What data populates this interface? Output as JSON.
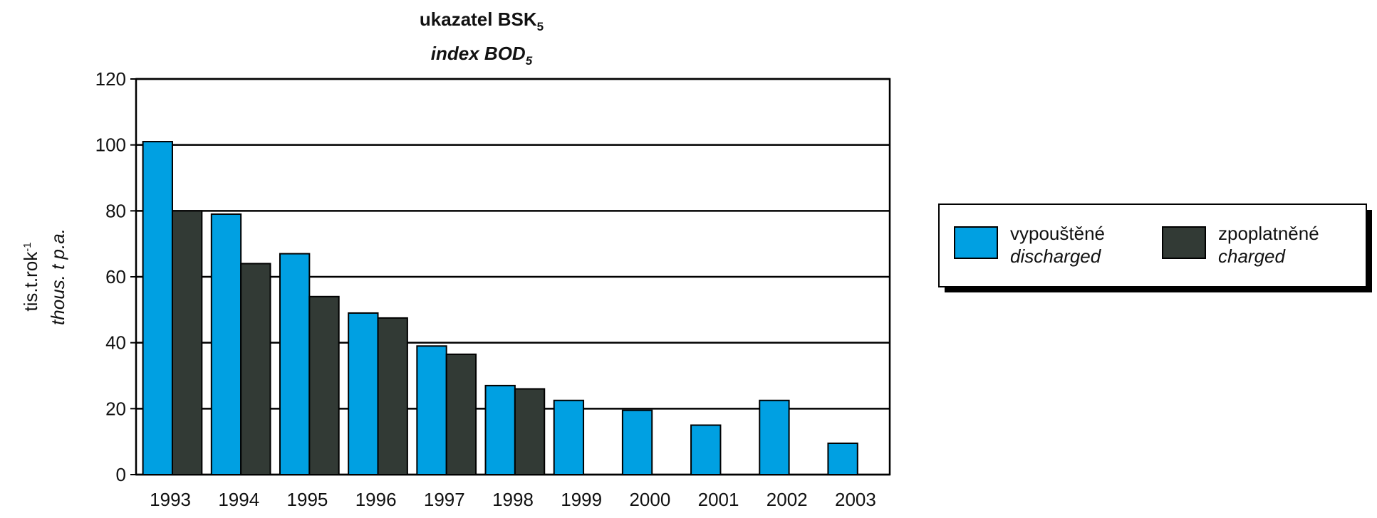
{
  "chart_data": {
    "type": "bar",
    "title": {
      "text": "ukazatel BSK",
      "subscript": "5"
    },
    "subtitle": {
      "text": "index BOD",
      "subscript": "5"
    },
    "y_label": {
      "text": "tis.t.rok",
      "superscript": "-1"
    },
    "y_label_en": "thous. t p.a.",
    "categories": [
      "1993",
      "1994",
      "1995",
      "1996",
      "1997",
      "1998",
      "1999",
      "2000",
      "2001",
      "2002",
      "2003"
    ],
    "series": [
      {
        "name": "vypouštěné",
        "name_en": "discharged",
        "color": "#00a0e2",
        "values": [
          101,
          79,
          67,
          49,
          39,
          27,
          22.5,
          19.5,
          15,
          22.5,
          9.5
        ]
      },
      {
        "name": "zpoplatněné",
        "name_en": "charged",
        "color": "#323a35",
        "values": [
          80,
          64,
          54,
          47.5,
          36.5,
          26,
          null,
          null,
          null,
          null,
          null
        ]
      }
    ],
    "ylim": [
      0,
      120
    ],
    "yticks": [
      0,
      20,
      40,
      60,
      80,
      100,
      120
    ],
    "grid": true,
    "legend": "right"
  }
}
